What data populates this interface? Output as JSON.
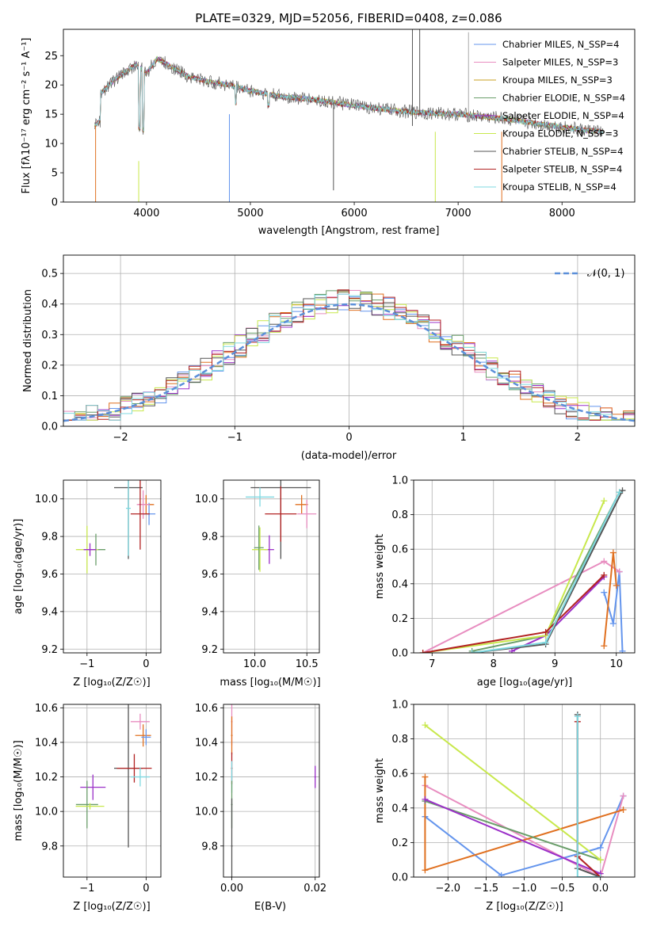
{
  "chart_data": [
    {
      "type": "line",
      "title": "PLATE=0329, MJD=52056, FIBERID=0408, z=0.086",
      "xlabel": "wavelength [Angstrom, rest frame]",
      "ylabel": "Flux [fλ10⁻¹⁷ erg cm⁻² s⁻¹ A⁻¹]",
      "xlim": [
        3200,
        8700
      ],
      "ylim": [
        0,
        29.5
      ],
      "xticks": [
        4000,
        5000,
        6000,
        7000,
        8000
      ],
      "yticks": [
        0,
        5,
        10,
        15,
        20,
        25
      ],
      "legend_position": "top-right",
      "series": [
        {
          "name": "Chabrier MILES, N_SSP=4",
          "color": "#6495ed"
        },
        {
          "name": "Salpeter MILES, N_SSP=3",
          "color": "#e88dc0"
        },
        {
          "name": "Kroupa MILES, N_SSP=3",
          "color": "#c8a020"
        },
        {
          "name": "Chabrier ELODIE, N_SSP=4",
          "color": "#6a9e6a"
        },
        {
          "name": "Salpeter ELODIE, N_SSP=4",
          "color": "#9b30c8"
        },
        {
          "name": "Kroupa ELODIE, N_SSP=3",
          "color": "#c8e84c"
        },
        {
          "name": "Chabrier STELIB, N_SSP=4",
          "color": "#555555"
        },
        {
          "name": "Salpeter STELIB, N_SSP=4",
          "color": "#b22222"
        },
        {
          "name": "Kroupa STELIB, N_SSP=4",
          "color": "#7fd8e0"
        }
      ],
      "continuum_knots": {
        "x": [
          3500,
          3700,
          3900,
          4000,
          4100,
          4200,
          4400,
          4600,
          4800,
          5000,
          5300,
          5600,
          6000,
          6300,
          6600,
          7000,
          7400,
          7800,
          8200,
          8400
        ],
        "y": [
          17.5,
          21,
          23.5,
          22,
          24.5,
          23.5,
          21.5,
          20.5,
          20,
          19,
          18,
          17.5,
          16.5,
          15.8,
          15.3,
          15,
          14.3,
          13.3,
          12.3,
          12
        ]
      }
    },
    {
      "type": "line",
      "xlabel": "(data-model)/error",
      "ylabel": "Normed distribution",
      "xlim": [
        -2.5,
        2.5
      ],
      "ylim": [
        0,
        0.56
      ],
      "xticks": [
        -2,
        -1,
        0,
        1,
        2
      ],
      "xtick_labels": [
        "−2",
        "−1",
        "0",
        "1",
        "2"
      ],
      "yticks": [
        0.0,
        0.1,
        0.2,
        0.3,
        0.4,
        0.5
      ],
      "ytick_labels": [
        "0.0",
        "0.1",
        "0.2",
        "0.3",
        "0.4",
        "0.5"
      ],
      "legend": "𝒩(0, 1)",
      "legend_position": "top-right",
      "grid": true
    },
    {
      "type": "scatter",
      "xlabel": "Z [log₁₀(Z/Z☉)]",
      "ylabel": "age  [log₁₀(age/yr)]",
      "xlim": [
        -1.4,
        0.25
      ],
      "ylim": [
        9.18,
        10.1
      ],
      "xticks": [
        -1,
        0
      ],
      "xtick_labels": [
        "−1",
        "0"
      ],
      "yticks": [
        9.2,
        9.4,
        9.6,
        9.8,
        10.0
      ],
      "ytick_labels": [
        "9.2",
        "9.4",
        "9.6",
        "9.8",
        "10.0"
      ],
      "points": [
        {
          "x": -0.85,
          "y": 9.73,
          "color": "#6a9e6a"
        },
        {
          "x": -1.0,
          "y": 9.73,
          "color": "#c8e84c"
        },
        {
          "x": -0.95,
          "y": 9.73,
          "color": "#9b30c8"
        },
        {
          "x": -0.3,
          "y": 10.06,
          "color": "#555555"
        },
        {
          "x": 0.0,
          "y": 9.97,
          "color": "#e07020"
        },
        {
          "x": 0.05,
          "y": 9.92,
          "color": "#6495ed"
        },
        {
          "x": -0.05,
          "y": 9.97,
          "color": "#e88dc0"
        },
        {
          "x": -0.1,
          "y": 9.92,
          "color": "#b22222"
        },
        {
          "x": -0.3,
          "y": 9.95,
          "color": "#7fd8e0"
        }
      ]
    },
    {
      "type": "scatter",
      "xlabel": "mass [log₁₀(M/M☉)]",
      "xlim": [
        9.7,
        10.62
      ],
      "ylim": [
        9.18,
        10.1
      ],
      "xticks": [
        10.0,
        10.5
      ],
      "xtick_labels": [
        "10.0",
        "10.5"
      ],
      "yticks": [
        9.2,
        9.4,
        9.6,
        9.8,
        10.0
      ],
      "ytick_labels": [
        "9.2",
        "9.4",
        "9.6",
        "9.8",
        "10.0"
      ],
      "points": [
        {
          "x": 10.25,
          "y": 10.06,
          "color": "#555555"
        },
        {
          "x": 10.05,
          "y": 10.01,
          "color": "#7fd8e0"
        },
        {
          "x": 10.25,
          "y": 9.92,
          "color": "#b22222"
        },
        {
          "x": 10.45,
          "y": 9.97,
          "color": "#e07020"
        },
        {
          "x": 10.5,
          "y": 9.92,
          "color": "#e88dc0"
        },
        {
          "x": 10.14,
          "y": 9.73,
          "color": "#9b30c8"
        },
        {
          "x": 10.05,
          "y": 9.73,
          "color": "#c8e84c"
        },
        {
          "x": 10.04,
          "y": 9.74,
          "color": "#6a9e6a"
        }
      ]
    },
    {
      "type": "line",
      "xlabel": "age  [log₁₀(age/yr)]",
      "ylabel": "mass weight",
      "xlim": [
        6.7,
        10.3
      ],
      "ylim": [
        0,
        1.0
      ],
      "xticks": [
        7,
        8,
        9,
        10
      ],
      "xtick_labels": [
        "7",
        "8",
        "9",
        "10"
      ],
      "yticks": [
        0.0,
        0.2,
        0.4,
        0.6,
        0.8,
        1.0
      ],
      "ytick_labels": [
        "0.0",
        "0.2",
        "0.4",
        "0.6",
        "0.8",
        "1.0"
      ],
      "grid": true,
      "series": [
        {
          "color": "#6495ed",
          "x": [
            9.8,
            9.95,
            10.05,
            10.1
          ],
          "y": [
            0.35,
            0.17,
            0.47,
            0.01
          ]
        },
        {
          "color": "#e88dc0",
          "x": [
            6.85,
            9.8,
            10.05
          ],
          "y": [
            0.0,
            0.53,
            0.47
          ]
        },
        {
          "color": "#e07020",
          "x": [
            9.8,
            9.95,
            10.0
          ],
          "y": [
            0.04,
            0.58,
            0.39
          ]
        },
        {
          "color": "#6a9e6a",
          "x": [
            7.65,
            8.85,
            10.05
          ],
          "y": [
            0.01,
            0.1,
            0.93
          ]
        },
        {
          "color": "#9b30c8",
          "x": [
            8.3,
            8.85,
            9.8
          ],
          "y": [
            0.01,
            0.1,
            0.44
          ]
        },
        {
          "color": "#c8e84c",
          "x": [
            6.85,
            8.85,
            9.8
          ],
          "y": [
            0.0,
            0.1,
            0.88
          ]
        },
        {
          "color": "#555555",
          "x": [
            7.65,
            8.85,
            10.1
          ],
          "y": [
            0.0,
            0.05,
            0.94
          ]
        },
        {
          "color": "#b22222",
          "x": [
            6.85,
            8.85,
            9.8
          ],
          "y": [
            0.0,
            0.12,
            0.45
          ]
        },
        {
          "color": "#7fd8e0",
          "x": [
            7.65,
            8.85,
            10.05
          ],
          "y": [
            0.0,
            0.06,
            0.93
          ]
        }
      ]
    },
    {
      "type": "scatter",
      "xlabel": "Z [log₁₀(Z/Z☉)]",
      "ylabel": "mass [log₁₀(M/M☉)]",
      "xlim": [
        -1.4,
        0.25
      ],
      "ylim": [
        9.62,
        10.62
      ],
      "xticks": [
        -1,
        0
      ],
      "xtick_labels": [
        "−1",
        "0"
      ],
      "yticks": [
        9.8,
        10.0,
        10.2,
        10.4,
        10.6
      ],
      "ytick_labels": [
        "9.8",
        "10.0",
        "10.2",
        "10.4",
        "10.6"
      ],
      "points": [
        {
          "x": -0.1,
          "y": 10.52,
          "color": "#e88dc0"
        },
        {
          "x": -0.05,
          "y": 10.44,
          "color": "#e07020"
        },
        {
          "x": 0.0,
          "y": 10.43,
          "color": "#6495ed"
        },
        {
          "x": -0.3,
          "y": 10.25,
          "color": "#555555"
        },
        {
          "x": -0.2,
          "y": 10.25,
          "color": "#b22222"
        },
        {
          "x": -0.1,
          "y": 10.2,
          "color": "#7fd8e0"
        },
        {
          "x": -0.9,
          "y": 10.14,
          "color": "#9b30c8"
        },
        {
          "x": -1.0,
          "y": 10.04,
          "color": "#6a9e6a"
        },
        {
          "x": -0.95,
          "y": 10.03,
          "color": "#c8e84c"
        }
      ]
    },
    {
      "type": "scatter",
      "xlabel": "E(B-V)",
      "xlim": [
        -0.002,
        0.021
      ],
      "ylim": [
        9.62,
        10.62
      ],
      "xticks": [
        0.0,
        0.02
      ],
      "xtick_labels": [
        "0.00",
        "0.02"
      ],
      "yticks": [
        9.8,
        10.0,
        10.2,
        10.4,
        10.6
      ],
      "ytick_labels": [
        "9.8",
        "10.0",
        "10.2",
        "10.4",
        "10.6"
      ],
      "points": [
        {
          "x": 0.0,
          "y": 10.52,
          "color": "#e88dc0"
        },
        {
          "x": 0.0,
          "y": 10.44,
          "color": "#e07020"
        },
        {
          "x": 0.0,
          "y": 10.25,
          "color": "#b22222"
        },
        {
          "x": 0.0,
          "y": 10.2,
          "color": "#7fd8e0"
        },
        {
          "x": 0.0,
          "y": 10.04,
          "color": "#6a9e6a"
        },
        {
          "x": 0.0,
          "y": 9.8,
          "color": "#555555"
        },
        {
          "x": 0.02,
          "y": 10.2,
          "color": "#9b30c8"
        }
      ]
    },
    {
      "type": "line",
      "xlabel": "Z [log₁₀(Z/Z☉)]",
      "ylabel": "mass weight",
      "xlim": [
        -2.45,
        0.45
      ],
      "ylim": [
        0,
        1.0
      ],
      "xticks": [
        -2.0,
        -1.5,
        -1.0,
        -0.5,
        0.0
      ],
      "xtick_labels": [
        "−2.0",
        "−1.5",
        "−1.0",
        "−0.5",
        "0.0"
      ],
      "yticks": [
        0.0,
        0.2,
        0.4,
        0.6,
        0.8,
        1.0
      ],
      "ytick_labels": [
        "0.0",
        "0.2",
        "0.4",
        "0.6",
        "0.8",
        "1.0"
      ],
      "grid": true,
      "series": [
        {
          "color": "#6495ed",
          "x": [
            -2.3,
            -1.3,
            0.0,
            0.3
          ],
          "y": [
            0.35,
            0.01,
            0.17,
            0.47
          ]
        },
        {
          "color": "#e88dc0",
          "x": [
            -2.3,
            0.0,
            0.3
          ],
          "y": [
            0.53,
            0.0,
            0.47
          ]
        },
        {
          "color": "#e07020",
          "x": [
            -2.3,
            -2.3,
            0.3
          ],
          "y": [
            0.58,
            0.04,
            0.39
          ]
        },
        {
          "color": "#6a9e6a",
          "x": [
            -2.3,
            0.0
          ],
          "y": [
            0.44,
            0.1
          ]
        },
        {
          "color": "#9b30c8",
          "x": [
            -2.3,
            0.0
          ],
          "y": [
            0.45,
            0.02
          ]
        },
        {
          "color": "#c8e84c",
          "x": [
            -2.3,
            0.0
          ],
          "y": [
            0.88,
            0.1
          ]
        },
        {
          "color": "#555555",
          "x": [
            -0.3,
            -0.3,
            0.0
          ],
          "y": [
            0.94,
            0.05,
            0.0
          ]
        },
        {
          "color": "#b22222",
          "x": [
            -0.3,
            -0.3,
            0.0
          ],
          "y": [
            0.9,
            0.12,
            0.0
          ]
        },
        {
          "color": "#7fd8e0",
          "x": [
            -0.3,
            -0.3,
            0.0
          ],
          "y": [
            0.93,
            0.0,
            0.0
          ]
        }
      ]
    }
  ]
}
